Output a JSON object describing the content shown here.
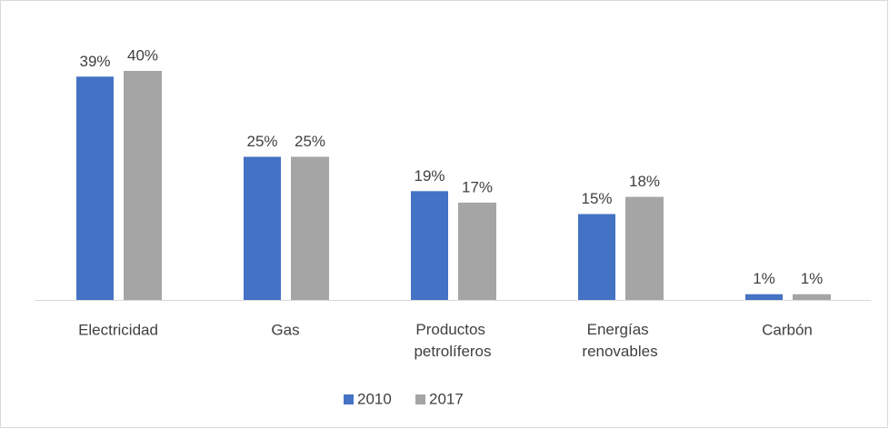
{
  "chart_data": {
    "type": "bar",
    "categories": [
      "Electricidad",
      "Gas",
      "Productos petrolíferos",
      "Energías renovables",
      "Carbón"
    ],
    "series": [
      {
        "name": "2010",
        "color": "#4472c4",
        "values": [
          39,
          25,
          19,
          15,
          1
        ],
        "value_labels": [
          "39%",
          "25%",
          "19%",
          "15%",
          "1%"
        ]
      },
      {
        "name": "2017",
        "color": "#a5a5a5",
        "values": [
          40,
          25,
          17,
          18,
          1
        ],
        "value_labels": [
          "40%",
          "25%",
          "17%",
          "18%",
          "1%"
        ]
      }
    ],
    "legend": "bottom"
  }
}
